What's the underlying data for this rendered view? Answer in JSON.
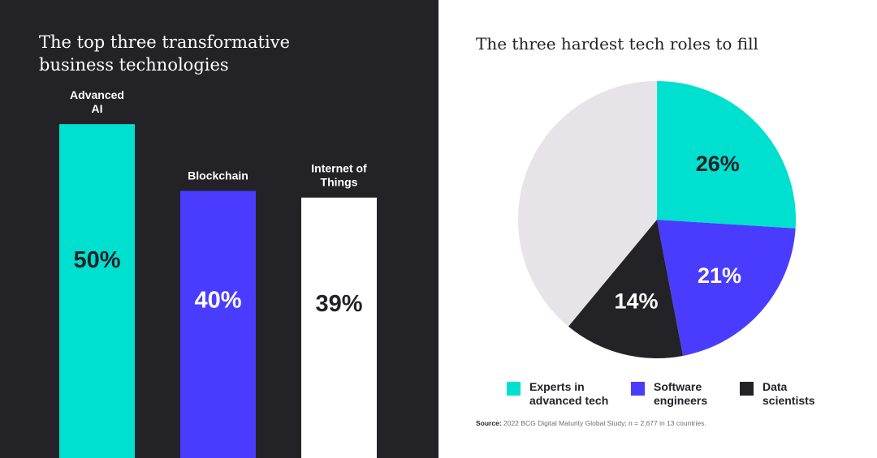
{
  "left": {
    "title": "The top three transformative business technologies"
  },
  "right": {
    "title": "The three hardest tech roles to fill",
    "source_label": "Source:",
    "source_text": "2022 BCG Digital Maturity Global Study; n = 2,677 in 13 countries."
  },
  "colors": {
    "left_background": "#232227",
    "teal": "#00e0d0",
    "blue": "#4a3cff",
    "white": "#ffffff",
    "dark": "#232227",
    "remainder": "#e6e3e9"
  },
  "chart_data": [
    {
      "type": "bar",
      "title": "The top three transformative business technologies",
      "categories": [
        "Advanced\nAI",
        "Blockchain",
        "Internet of\nThings"
      ],
      "values": [
        50,
        40,
        39
      ],
      "value_labels": [
        "50%",
        "40%",
        "39%"
      ],
      "colors": [
        "#00e0d0",
        "#4a3cff",
        "#ffffff"
      ],
      "label_colors": [
        "#232227",
        "#ffffff",
        "#232227"
      ],
      "ylim": [
        0,
        59
      ],
      "xlabel": "",
      "ylabel": "",
      "grid": false
    },
    {
      "type": "pie",
      "title": "The three hardest tech roles to fill",
      "labels": [
        "Experts in\nadvanced tech",
        "Software\nengineers",
        "Data\nscientists"
      ],
      "values": [
        26,
        21,
        14
      ],
      "value_labels": [
        "26%",
        "21%",
        "14%"
      ],
      "colors": [
        "#00e0d0",
        "#4a3cff",
        "#232227"
      ],
      "label_colors": [
        "#232227",
        "#ffffff",
        "#ffffff"
      ],
      "remainder_color": "#e6e3e9",
      "legend_position": "bottom"
    }
  ]
}
